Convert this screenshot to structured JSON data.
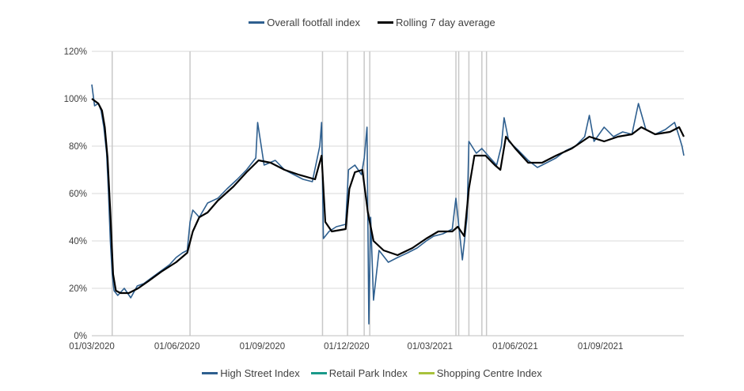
{
  "chart_data": {
    "type": "line",
    "title": "",
    "xlabel": "",
    "ylabel": "",
    "ylim": [
      0,
      120
    ],
    "y_ticks": [
      "0%",
      "20%",
      "40%",
      "60%",
      "80%",
      "100%",
      "120%"
    ],
    "x_ticks": [
      "01/03/2020",
      "01/06/2020",
      "01/09/2020",
      "01/12/2020",
      "01/03/2021",
      "01/06/2021",
      "01/09/2021"
    ],
    "x_range": [
      "2020-03-01",
      "2021-11-30"
    ],
    "grid": "horizontal",
    "legend_top": [
      "Overall footfall index",
      "Rolling 7 day average"
    ],
    "legend_bottom": [
      "High Street Index",
      "Retail Park Index",
      "Shopping Centre Index"
    ],
    "colors": {
      "overall": "#2e5f8f",
      "rolling": "#000000",
      "high_street": "#2e5f8f",
      "retail_park": "#1a9a8a",
      "shopping_centre": "#a8c23c",
      "vlines": "#c8c8c8",
      "grid": "#d9d9d9"
    },
    "vertical_markers": [
      "2020-03-23",
      "2020-06-15",
      "2020-11-05",
      "2020-12-02",
      "2020-12-20",
      "2020-12-26",
      "2021-03-29",
      "2021-04-01",
      "2021-04-12",
      "2021-04-26",
      "2021-05-01"
    ],
    "series": [
      {
        "name": "Overall footfall index",
        "points": [
          [
            "2020-03-01",
            106
          ],
          [
            "2020-03-04",
            97
          ],
          [
            "2020-03-08",
            98
          ],
          [
            "2020-03-11",
            95
          ],
          [
            "2020-03-14",
            88
          ],
          [
            "2020-03-17",
            77
          ],
          [
            "2020-03-19",
            60
          ],
          [
            "2020-03-21",
            40
          ],
          [
            "2020-03-23",
            26
          ],
          [
            "2020-03-25",
            19
          ],
          [
            "2020-03-29",
            17
          ],
          [
            "2020-04-05",
            20
          ],
          [
            "2020-04-12",
            16
          ],
          [
            "2020-04-19",
            21
          ],
          [
            "2020-04-26",
            22
          ],
          [
            "2020-05-03",
            24
          ],
          [
            "2020-05-10",
            26
          ],
          [
            "2020-05-17",
            28
          ],
          [
            "2020-05-24",
            30
          ],
          [
            "2020-05-31",
            33
          ],
          [
            "2020-06-07",
            35
          ],
          [
            "2020-06-12",
            36
          ],
          [
            "2020-06-15",
            48
          ],
          [
            "2020-06-18",
            53
          ],
          [
            "2020-06-25",
            50
          ],
          [
            "2020-07-04",
            56
          ],
          [
            "2020-07-15",
            58
          ],
          [
            "2020-07-25",
            62
          ],
          [
            "2020-08-05",
            66
          ],
          [
            "2020-08-15",
            70
          ],
          [
            "2020-08-25",
            75
          ],
          [
            "2020-08-27",
            90
          ],
          [
            "2020-09-03",
            72
          ],
          [
            "2020-09-15",
            74
          ],
          [
            "2020-09-25",
            70
          ],
          [
            "2020-10-05",
            68
          ],
          [
            "2020-10-15",
            66
          ],
          [
            "2020-10-25",
            65
          ],
          [
            "2020-11-02",
            80
          ],
          [
            "2020-11-04",
            90
          ],
          [
            "2020-11-06",
            41
          ],
          [
            "2020-11-12",
            44
          ],
          [
            "2020-11-20",
            46
          ],
          [
            "2020-11-30",
            47
          ],
          [
            "2020-12-03",
            70
          ],
          [
            "2020-12-10",
            72
          ],
          [
            "2020-12-17",
            68
          ],
          [
            "2020-12-20",
            75
          ],
          [
            "2020-12-23",
            88
          ],
          [
            "2020-12-25",
            5
          ],
          [
            "2020-12-27",
            50
          ],
          [
            "2020-12-30",
            15
          ],
          [
            "2021-01-05",
            36
          ],
          [
            "2021-01-15",
            31
          ],
          [
            "2021-01-25",
            33
          ],
          [
            "2021-02-05",
            35
          ],
          [
            "2021-02-15",
            37
          ],
          [
            "2021-02-25",
            40
          ],
          [
            "2021-03-05",
            42
          ],
          [
            "2021-03-15",
            43
          ],
          [
            "2021-03-25",
            45
          ],
          [
            "2021-03-29",
            58
          ],
          [
            "2021-04-05",
            32
          ],
          [
            "2021-04-10",
            50
          ],
          [
            "2021-04-12",
            82
          ],
          [
            "2021-04-20",
            77
          ],
          [
            "2021-04-26",
            79
          ],
          [
            "2021-05-05",
            75
          ],
          [
            "2021-05-12",
            72
          ],
          [
            "2021-05-17",
            80
          ],
          [
            "2021-05-20",
            92
          ],
          [
            "2021-05-25",
            82
          ],
          [
            "2021-06-05",
            78
          ],
          [
            "2021-06-15",
            74
          ],
          [
            "2021-06-25",
            71
          ],
          [
            "2021-07-05",
            73
          ],
          [
            "2021-07-15",
            75
          ],
          [
            "2021-07-25",
            78
          ],
          [
            "2021-08-05",
            80
          ],
          [
            "2021-08-15",
            84
          ],
          [
            "2021-08-20",
            93
          ],
          [
            "2021-08-25",
            82
          ],
          [
            "2021-09-05",
            88
          ],
          [
            "2021-09-15",
            84
          ],
          [
            "2021-09-25",
            86
          ],
          [
            "2021-10-05",
            85
          ],
          [
            "2021-10-12",
            98
          ],
          [
            "2021-10-20",
            87
          ],
          [
            "2021-10-30",
            85
          ],
          [
            "2021-11-10",
            87
          ],
          [
            "2021-11-20",
            90
          ],
          [
            "2021-11-25",
            84
          ],
          [
            "2021-11-28",
            80
          ],
          [
            "2021-11-30",
            76
          ]
        ]
      },
      {
        "name": "Rolling 7 day average",
        "points": [
          [
            "2020-03-01",
            100
          ],
          [
            "2020-03-08",
            98
          ],
          [
            "2020-03-12",
            95
          ],
          [
            "2020-03-15",
            88
          ],
          [
            "2020-03-18",
            75
          ],
          [
            "2020-03-21",
            52
          ],
          [
            "2020-03-24",
            26
          ],
          [
            "2020-03-27",
            19
          ],
          [
            "2020-04-01",
            18
          ],
          [
            "2020-04-10",
            18
          ],
          [
            "2020-04-20",
            20
          ],
          [
            "2020-05-01",
            23
          ],
          [
            "2020-05-15",
            27
          ],
          [
            "2020-05-31",
            31
          ],
          [
            "2020-06-12",
            35
          ],
          [
            "2020-06-18",
            44
          ],
          [
            "2020-06-25",
            50
          ],
          [
            "2020-07-04",
            52
          ],
          [
            "2020-07-15",
            57
          ],
          [
            "2020-08-01",
            63
          ],
          [
            "2020-08-15",
            69
          ],
          [
            "2020-08-28",
            74
          ],
          [
            "2020-09-10",
            73
          ],
          [
            "2020-09-25",
            70
          ],
          [
            "2020-10-10",
            68
          ],
          [
            "2020-10-28",
            66
          ],
          [
            "2020-11-04",
            76
          ],
          [
            "2020-11-08",
            48
          ],
          [
            "2020-11-15",
            44
          ],
          [
            "2020-11-30",
            45
          ],
          [
            "2020-12-04",
            62
          ],
          [
            "2020-12-10",
            69
          ],
          [
            "2020-12-18",
            70
          ],
          [
            "2020-12-24",
            52
          ],
          [
            "2020-12-30",
            40
          ],
          [
            "2021-01-10",
            36
          ],
          [
            "2021-01-25",
            34
          ],
          [
            "2021-02-10",
            37
          ],
          [
            "2021-02-25",
            41
          ],
          [
            "2021-03-10",
            44
          ],
          [
            "2021-03-25",
            44
          ],
          [
            "2021-03-31",
            46
          ],
          [
            "2021-04-07",
            42
          ],
          [
            "2021-04-12",
            62
          ],
          [
            "2021-04-18",
            76
          ],
          [
            "2021-04-30",
            76
          ],
          [
            "2021-05-10",
            72
          ],
          [
            "2021-05-16",
            70
          ],
          [
            "2021-05-22",
            84
          ],
          [
            "2021-06-01",
            79
          ],
          [
            "2021-06-15",
            73
          ],
          [
            "2021-06-30",
            73
          ],
          [
            "2021-07-15",
            76
          ],
          [
            "2021-08-01",
            79
          ],
          [
            "2021-08-20",
            84
          ],
          [
            "2021-09-05",
            82
          ],
          [
            "2021-09-20",
            84
          ],
          [
            "2021-10-05",
            85
          ],
          [
            "2021-10-15",
            88
          ],
          [
            "2021-10-30",
            85
          ],
          [
            "2021-11-15",
            86
          ],
          [
            "2021-11-25",
            88
          ],
          [
            "2021-11-30",
            84
          ]
        ]
      }
    ]
  }
}
